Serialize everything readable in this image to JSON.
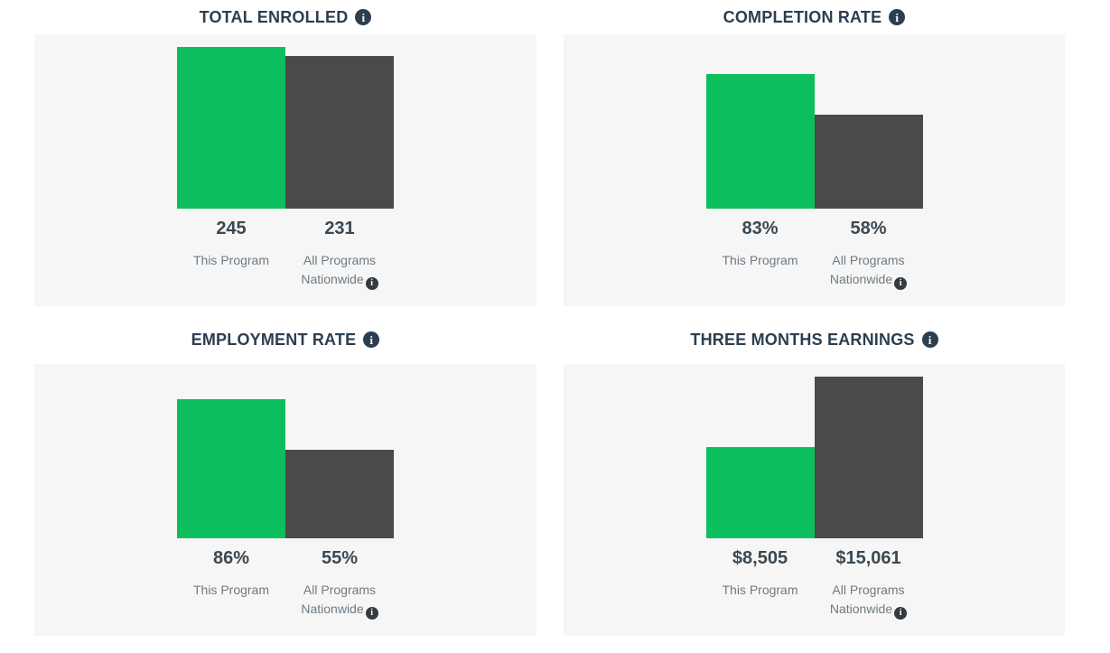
{
  "icons": {
    "info": "i"
  },
  "labels": {
    "program": "This Program",
    "nationwide_line1": "All Programs",
    "nationwide_line2": "Nationwide"
  },
  "colors": {
    "program_bar": "#0dbe5e",
    "nationwide_bar": "#4a4a4a",
    "panel_bg": "#f6f6f6",
    "title_text": "#2c3e50",
    "value_text": "#3b4851",
    "label_text": "#6e7a84",
    "info_icon_bg": "#343a40"
  },
  "chart_data": [
    {
      "type": "bar",
      "title": "TOTAL ENROLLED",
      "categories": [
        "This Program",
        "All Programs Nationwide"
      ],
      "values": [
        245,
        231
      ],
      "display_values": [
        "245",
        "231"
      ],
      "scale_max": 245,
      "ylim": [
        0,
        245
      ],
      "grid": false,
      "legend_position": "none"
    },
    {
      "type": "bar",
      "title": "COMPLETION RATE",
      "categories": [
        "This Program",
        "All Programs Nationwide"
      ],
      "values": [
        83,
        58
      ],
      "display_values": [
        "83%",
        "58%"
      ],
      "scale_max": 100,
      "ylim": [
        0,
        100
      ],
      "grid": false,
      "legend_position": "none"
    },
    {
      "type": "bar",
      "title": "EMPLOYMENT RATE",
      "categories": [
        "This Program",
        "All Programs Nationwide"
      ],
      "values": [
        86,
        55
      ],
      "display_values": [
        "86%",
        "55%"
      ],
      "scale_max": 100,
      "ylim": [
        0,
        100
      ],
      "grid": false,
      "legend_position": "none"
    },
    {
      "type": "bar",
      "title": "THREE MONTHS EARNINGS",
      "categories": [
        "This Program",
        "All Programs Nationwide"
      ],
      "values": [
        8505,
        15061
      ],
      "display_values": [
        "$8,505",
        "$15,061"
      ],
      "scale_max": 15061,
      "ylim": [
        0,
        15061
      ],
      "grid": false,
      "legend_position": "none"
    }
  ]
}
